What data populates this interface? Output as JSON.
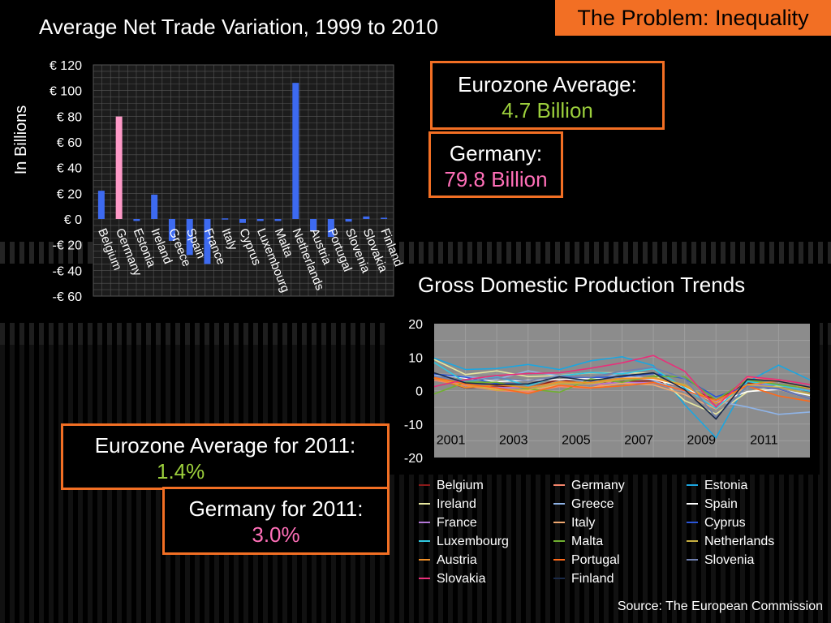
{
  "slide": {
    "tag": "The Problem: Inequality",
    "source": "Source: The European Commission",
    "callouts": {
      "eurozone_avg_label": "Eurozone Average:",
      "eurozone_avg_value": "4.7 Billion",
      "germany_label": "Germany:",
      "germany_value": "79.8 Billion",
      "eurozone_2011_label": "Eurozone Average for 2011:",
      "eurozone_2011_value": "1.4%",
      "germany_2011_label": "Germany for 2011:",
      "germany_2011_value": "3.0%"
    },
    "colors": {
      "accent": "#f26f24",
      "green_value": "#9ccf3c",
      "pink_value": "#ff6fb8"
    }
  },
  "chart_data": [
    {
      "type": "bar",
      "title": "Average Net Trade Variation, 1999 to 2010",
      "ylabel": "In Billions",
      "xlabel": "",
      "ylim": [
        -60,
        120
      ],
      "yticks": [
        120,
        100,
        80,
        60,
        40,
        20,
        0,
        -20,
        -40,
        -60
      ],
      "ytick_labels": [
        "€ 120",
        "€ 100",
        "€ 80",
        "€ 60",
        "€ 40",
        "€ 20",
        "€ 0",
        "-€ 20",
        "-€ 40",
        "-€ 60"
      ],
      "grid": true,
      "categories": [
        "Belgium",
        "Germany",
        "Estonia",
        "Ireland",
        "Greece",
        "Spain",
        "France",
        "Italy",
        "Cyprus",
        "Luxembourg",
        "Malta",
        "Netherlands",
        "Austria",
        "Portugal",
        "Slovenia",
        "Slovakia",
        "Finland"
      ],
      "values": [
        22,
        79.8,
        -1.5,
        19,
        -17,
        -28,
        -35,
        0.5,
        -3,
        -1.5,
        -1.5,
        106,
        -9,
        -14,
        -2,
        2,
        1
      ],
      "bar_color": "#3d6af0",
      "highlight": {
        "category": "Germany",
        "color": "#ff9ac8"
      }
    },
    {
      "type": "line",
      "title": "Gross Domestic Production Trends",
      "xlabel": "",
      "ylabel": "",
      "xlim": [
        2000,
        2012
      ],
      "ylim": [
        -20,
        20
      ],
      "yticks": [
        20,
        10,
        0,
        -10,
        -20
      ],
      "xticks": [
        2001,
        2003,
        2005,
        2007,
        2009,
        2011
      ],
      "grid": true,
      "legend_position": "bottom",
      "x": [
        2000,
        2001,
        2002,
        2003,
        2004,
        2005,
        2006,
        2007,
        2008,
        2009,
        2010,
        2011,
        2012
      ],
      "series": [
        {
          "name": "Belgium",
          "color": "#8b1a1a",
          "values": [
            3.7,
            0.8,
            1.4,
            0.8,
            3.3,
            1.8,
            2.7,
            2.9,
            1.0,
            -2.8,
            2.3,
            1.8,
            -0.3
          ]
        },
        {
          "name": "Germany",
          "color": "#f4856b",
          "values": [
            3.1,
            1.5,
            0.0,
            -0.4,
            1.2,
            0.7,
            3.7,
            3.3,
            1.1,
            -5.1,
            4.0,
            3.0,
            0.7
          ]
        },
        {
          "name": "Estonia",
          "color": "#1ca6e0",
          "values": [
            9.7,
            6.3,
            6.6,
            7.8,
            6.3,
            8.9,
            10.1,
            7.5,
            -4.2,
            -14.1,
            2.6,
            7.6,
            3.2
          ]
        },
        {
          "name": "Ireland",
          "color": "#e8e8a0",
          "values": [
            9.3,
            4.8,
            5.9,
            4.2,
            4.5,
            5.3,
            5.3,
            5.2,
            -3.0,
            -7.0,
            -0.4,
            1.4,
            0.9
          ]
        },
        {
          "name": "Greece",
          "color": "#8fb4e8",
          "values": [
            4.5,
            4.2,
            3.4,
            5.9,
            4.4,
            2.3,
            5.5,
            3.0,
            -0.2,
            -3.1,
            -4.9,
            -7.1,
            -6.4
          ]
        },
        {
          "name": "Spain",
          "color": "#ffffff",
          "values": [
            5.0,
            3.7,
            2.7,
            3.1,
            3.3,
            3.6,
            4.1,
            3.5,
            0.9,
            -3.7,
            -0.3,
            0.4,
            -1.4
          ]
        },
        {
          "name": "France",
          "color": "#b478d8",
          "values": [
            3.9,
            1.9,
            0.9,
            0.9,
            2.5,
            1.8,
            2.5,
            2.3,
            -0.1,
            -3.1,
            1.7,
            1.7,
            0.0
          ]
        },
        {
          "name": "Italy",
          "color": "#f0a870",
          "values": [
            3.7,
            1.9,
            0.5,
            0.0,
            1.7,
            0.9,
            2.2,
            1.7,
            -1.2,
            -5.5,
            1.7,
            0.4,
            -2.4
          ]
        },
        {
          "name": "Cyprus",
          "color": "#2a55d8",
          "values": [
            5.0,
            4.0,
            2.1,
            1.9,
            4.2,
            3.9,
            4.1,
            5.1,
            3.6,
            -1.9,
            1.3,
            0.5,
            -2.4
          ]
        },
        {
          "name": "Luxembourg",
          "color": "#30c8e0",
          "values": [
            8.4,
            2.5,
            4.1,
            1.5,
            4.4,
            5.4,
            5.0,
            6.6,
            0.8,
            -5.3,
            2.7,
            1.6,
            -0.2
          ]
        },
        {
          "name": "Malta",
          "color": "#70b030",
          "values": [
            -1.0,
            2.5,
            2.5,
            0.5,
            -0.5,
            3.5,
            2.5,
            4.3,
            4.1,
            -2.8,
            3.2,
            1.8,
            0.6
          ]
        },
        {
          "name": "Netherlands",
          "color": "#c8b040",
          "values": [
            3.9,
            1.9,
            0.1,
            0.3,
            2.2,
            2.0,
            3.4,
            3.9,
            1.8,
            -3.7,
            1.6,
            1.0,
            -1.0
          ]
        },
        {
          "name": "Austria",
          "color": "#f09028",
          "values": [
            3.7,
            0.9,
            1.7,
            0.9,
            2.6,
            2.4,
            3.7,
            3.7,
            1.4,
            -3.8,
            1.8,
            2.8,
            0.7
          ]
        },
        {
          "name": "Portugal",
          "color": "#ff6a1a",
          "values": [
            3.9,
            2.0,
            0.8,
            -0.9,
            1.6,
            0.8,
            1.4,
            2.4,
            0.0,
            -2.9,
            1.4,
            -1.6,
            -3.2
          ]
        },
        {
          "name": "Slovenia",
          "color": "#7080b0",
          "values": [
            4.3,
            2.9,
            3.8,
            2.9,
            4.4,
            4.0,
            5.8,
            6.9,
            3.6,
            -8.0,
            1.3,
            0.7,
            -2.3
          ]
        },
        {
          "name": "Slovakia",
          "color": "#e8307a",
          "values": [
            1.2,
            3.3,
            4.5,
            5.1,
            5.3,
            6.7,
            8.3,
            10.5,
            5.8,
            -4.9,
            4.2,
            3.3,
            1.8
          ]
        },
        {
          "name": "Finland",
          "color": "#1a2a48",
          "values": [
            5.3,
            2.3,
            1.8,
            2.0,
            4.1,
            2.9,
            4.4,
            5.3,
            0.3,
            -8.5,
            3.4,
            2.8,
            1.0
          ]
        }
      ]
    }
  ]
}
